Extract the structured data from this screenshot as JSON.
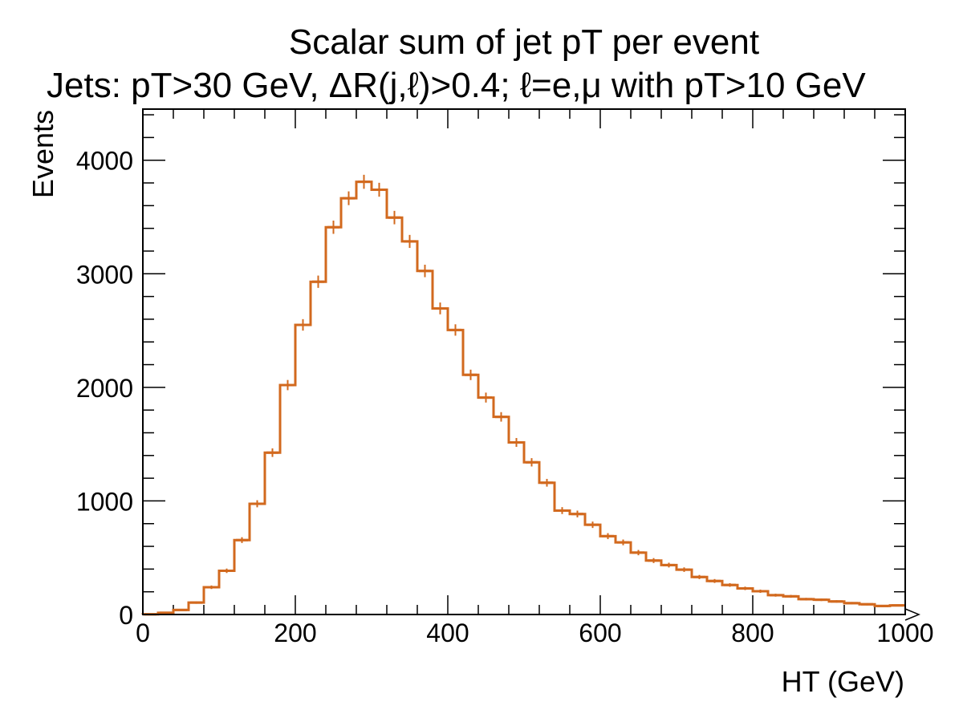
{
  "chart_data": {
    "type": "histogram",
    "title": "Scalar sum of jet pT per event",
    "subtitle": "Jets: pT>30 GeV, ΔR(j,ℓ)>0.4; ℓ=e,μ with pT>10 GeV",
    "xlabel": "HT (GeV)",
    "ylabel": "Events",
    "xlim": [
      0,
      1000
    ],
    "ylim": [
      0,
      4450
    ],
    "x_ticks": [
      0,
      200,
      400,
      600,
      800,
      1000
    ],
    "y_ticks": [
      0,
      1000,
      2000,
      3000,
      4000
    ],
    "grid": false,
    "legend": "none",
    "line_color": "#d2691e",
    "bin_width": 20,
    "bin_edges_start": 0,
    "values": [
      2,
      15,
      40,
      105,
      240,
      385,
      655,
      975,
      1425,
      2020,
      2550,
      2930,
      3410,
      3665,
      3810,
      3740,
      3495,
      3285,
      3025,
      2695,
      2505,
      2110,
      1910,
      1740,
      1515,
      1340,
      1160,
      915,
      885,
      790,
      690,
      635,
      545,
      475,
      435,
      395,
      330,
      295,
      260,
      230,
      205,
      170,
      160,
      135,
      130,
      115,
      100,
      90,
      75,
      80
    ]
  }
}
